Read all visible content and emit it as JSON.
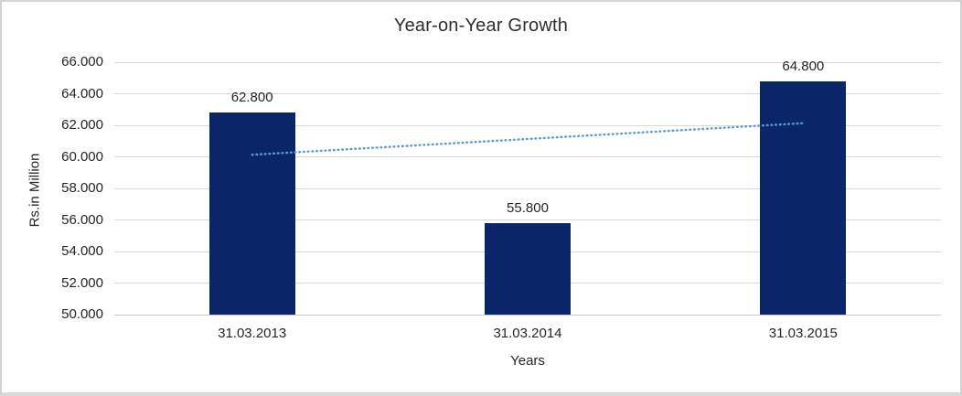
{
  "chart_data": {
    "type": "bar",
    "title": "Year-on-Year Growth",
    "xlabel": "Years",
    "ylabel": "Rs.in Million",
    "categories": [
      "31.03.2013",
      "31.03.2014",
      "31.03.2015"
    ],
    "values": [
      62800,
      55800,
      64800
    ],
    "value_labels": [
      "62.800",
      "55.800",
      "64.800"
    ],
    "ylim": [
      50000,
      66000
    ],
    "ytick_step": 2000,
    "ytick_labels": [
      "50.000",
      "52.000",
      "54.000",
      "56.000",
      "58.000",
      "60.000",
      "62.000",
      "64.000",
      "66.000"
    ],
    "grid": "horizontal",
    "legend": "none",
    "trendline": {
      "kind": "linear-dotted",
      "start_value": 60133,
      "end_value": 62133
    },
    "colors": {
      "bar": "#0a2668",
      "trendline": "#5b9bd5",
      "gridline": "#d9d9d9",
      "axis_line": "#c9c9c9",
      "text": "#262626",
      "title_text": "#2e2e2e"
    }
  }
}
